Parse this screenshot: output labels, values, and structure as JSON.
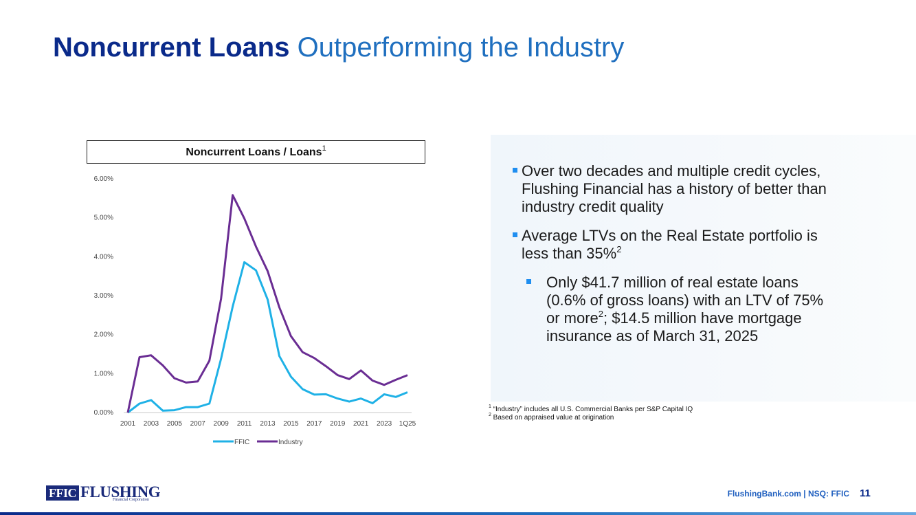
{
  "slide": {
    "title_bold": "Noncurrent Loans",
    "title_rest": " Outperforming the Industry",
    "bullets": [
      "Over two decades and multiple credit cycles, Flushing Financial has a history of better than industry credit quality",
      "Average LTVs on the Real Estate portfolio is less than 35%"
    ],
    "bullet2_sup": "2",
    "sub_bullet_a": "Only $41.7 million of real estate loans (0.6% of gross loans) with an LTV of 75% or more",
    "sub_bullet_sup": "2",
    "sub_bullet_b": "; $14.5 million have mortgage insurance as of March 31, 2025",
    "footnotes": [
      {
        "num": "1",
        "text": " “Industry” includes all U.S. Commercial Banks per S&P Capital IQ"
      },
      {
        "num": "2",
        "text": " Based on appraised value at origination"
      }
    ]
  },
  "footer": {
    "logo_box": "FFIC",
    "logo_name": "FLUSHING",
    "logo_sub": "Financial Corporation",
    "text": "FlushingBank.com  |  NSQ: FFIC",
    "page": "11"
  },
  "chart_data": {
    "type": "line",
    "title": "Noncurrent Loans / Loans",
    "title_sup": "1",
    "categories": [
      "2001",
      "2002",
      "2003",
      "2004",
      "2005",
      "2006",
      "2007",
      "2008",
      "2009",
      "2010",
      "2011",
      "2012",
      "2013",
      "2014",
      "2015",
      "2016",
      "2017",
      "2018",
      "2019",
      "2020",
      "2021",
      "2022",
      "2023",
      "2024",
      "1Q25"
    ],
    "x_tick_labels": [
      "2001",
      "2003",
      "2005",
      "2007",
      "2009",
      "2011",
      "2013",
      "2015",
      "2017",
      "2019",
      "2021",
      "2023",
      "1Q25"
    ],
    "y_ticks": [
      "0.00%",
      "1.00%",
      "2.00%",
      "3.00%",
      "4.00%",
      "5.00%",
      "6.00%"
    ],
    "ylim": [
      0,
      6
    ],
    "series": [
      {
        "name": "FFIC",
        "color": "#1fb1e6",
        "values": [
          0.0,
          0.23,
          0.32,
          0.05,
          0.06,
          0.14,
          0.14,
          0.23,
          1.38,
          2.72,
          3.86,
          3.65,
          2.9,
          1.45,
          0.92,
          0.6,
          0.46,
          0.47,
          0.36,
          0.28,
          0.36,
          0.24,
          0.47,
          0.4,
          0.52
        ]
      },
      {
        "name": "Industry",
        "color": "#6a2d93",
        "values": [
          0.0,
          1.42,
          1.47,
          1.21,
          0.88,
          0.77,
          0.8,
          1.33,
          2.92,
          5.58,
          4.98,
          4.26,
          3.63,
          2.7,
          1.96,
          1.55,
          1.4,
          1.19,
          0.96,
          0.86,
          1.08,
          0.82,
          0.71,
          0.84,
          0.96
        ]
      }
    ],
    "legend": "bottom"
  }
}
